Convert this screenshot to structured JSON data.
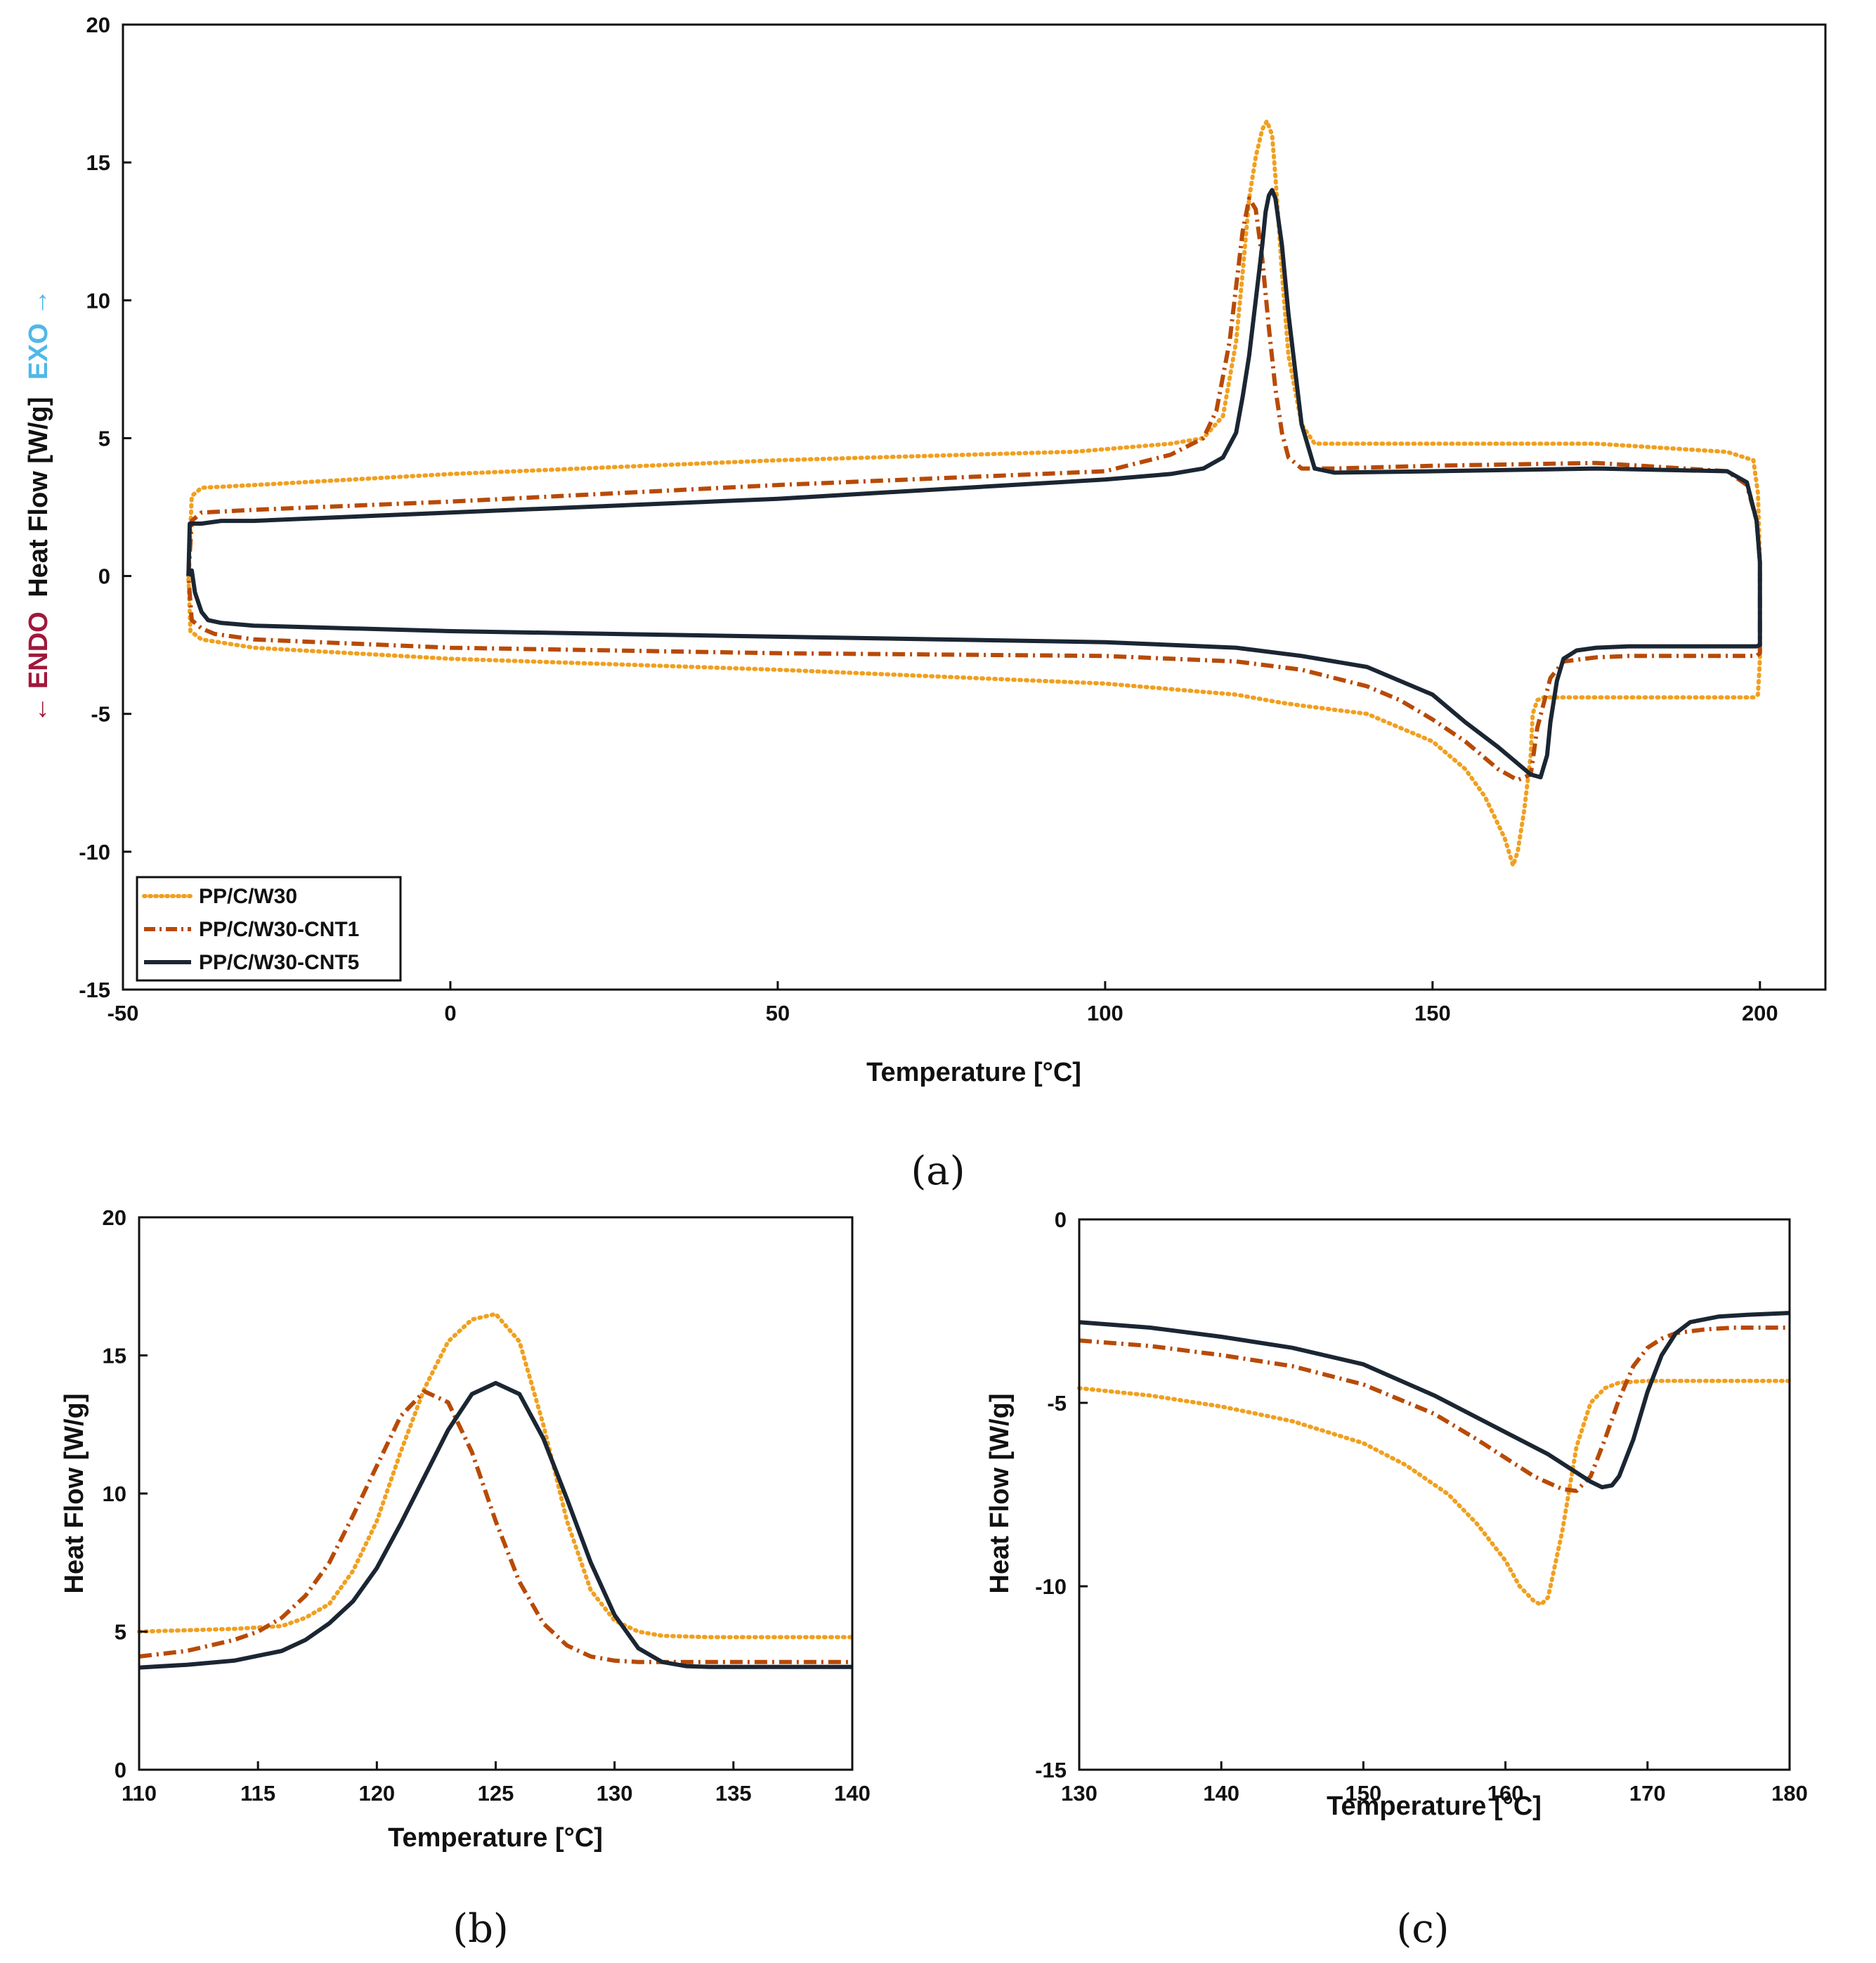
{
  "colors": {
    "pp_c_w30": "#F0A020",
    "pp_c_w30_cnt1": "#B84A06",
    "pp_c_w30_cnt5": "#1B2633",
    "endo": "#A0183C",
    "exo": "#4FB8E8"
  },
  "chart_data": [
    {
      "id": "a",
      "type": "line",
      "caption": "(a)",
      "xlabel": "Temperature [°C]",
      "ylabel": {
        "endo": "← ENDO",
        "middle": "Heat Flow [W/g]",
        "exo": "EXO →"
      },
      "xlim": [
        -50,
        210
      ],
      "ylim": [
        -15,
        20
      ],
      "xticks": [
        "-50",
        "0",
        "50",
        "100",
        "150",
        "200"
      ],
      "yticks": [
        "-15",
        "-10",
        "-5",
        "0",
        "5",
        "10",
        "15",
        "20"
      ],
      "legend": {
        "position": "bottom-left",
        "entries": [
          "PP/C/W30",
          "PP/C/W30-CNT1",
          "PP/C/W30-CNT5"
        ]
      },
      "series": [
        {
          "name": "PP/C/W30",
          "style": "dotted",
          "x": [
            -40,
            -39.5,
            -38,
            -30,
            0,
            50,
            94,
            95,
            110,
            115,
            118,
            120,
            121,
            122,
            123,
            124,
            124.7,
            125.5,
            126,
            127,
            128,
            130,
            132,
            150,
            175,
            195,
            199,
            199.7,
            200,
            200,
            199.7,
            199,
            195,
            175,
            167,
            166,
            165.3,
            165,
            164,
            163,
            162.3,
            161,
            158,
            155,
            150,
            140,
            130,
            127,
            120,
            100,
            50,
            0,
            -30,
            -38,
            -39.7,
            -40
          ],
          "y": [
            0,
            2.9,
            3.2,
            3.3,
            3.7,
            4.2,
            4.5,
            4.5,
            4.8,
            5.0,
            5.8,
            8.5,
            11.0,
            13.7,
            15.2,
            16.2,
            16.5,
            16.0,
            14.5,
            11.0,
            8.0,
            5.5,
            4.8,
            4.8,
            4.8,
            4.5,
            4.2,
            3.0,
            0.5,
            -3.0,
            -4.3,
            -4.4,
            -4.4,
            -4.4,
            -4.4,
            -4.5,
            -5.0,
            -6.5,
            -8.5,
            -10.0,
            -10.5,
            -9.5,
            -8.0,
            -7.0,
            -6.0,
            -5.0,
            -4.7,
            -4.6,
            -4.3,
            -3.9,
            -3.4,
            -3.0,
            -2.6,
            -2.3,
            -2.0,
            0
          ]
        },
        {
          "name": "PP/C/W30-CNT1",
          "style": "dashdot",
          "x": [
            -40,
            -39.5,
            -38,
            -30,
            0,
            50,
            100,
            110,
            115,
            117,
            119,
            120,
            121,
            122,
            123,
            124,
            125,
            126,
            127,
            128,
            130,
            132,
            135,
            150,
            175,
            195,
            198,
            199.5,
            200,
            200,
            199.5,
            198,
            195,
            180,
            175,
            170,
            168,
            166,
            165,
            163,
            160,
            155,
            150,
            145,
            140,
            130,
            120,
            100,
            50,
            0,
            -30,
            -36,
            -38,
            -39.5,
            -40
          ],
          "y": [
            0,
            2.0,
            2.3,
            2.4,
            2.7,
            3.3,
            3.8,
            4.4,
            5.0,
            6.0,
            8.5,
            10.5,
            12.5,
            13.7,
            13.3,
            11.5,
            9.0,
            6.8,
            5.2,
            4.3,
            3.9,
            3.9,
            3.9,
            4.0,
            4.1,
            3.8,
            3.3,
            2.0,
            0.5,
            -2.8,
            -2.9,
            -2.9,
            -2.9,
            -2.9,
            -2.95,
            -3.1,
            -3.7,
            -5.5,
            -7.2,
            -7.4,
            -7.0,
            -6.0,
            -5.2,
            -4.5,
            -4.0,
            -3.4,
            -3.1,
            -2.9,
            -2.8,
            -2.6,
            -2.3,
            -2.1,
            -1.9,
            -1.6,
            0
          ]
        },
        {
          "name": "PP/C/W30-CNT5",
          "style": "solid",
          "x": [
            -40,
            -39.8,
            -39,
            -38,
            -35,
            -30,
            0,
            50,
            100,
            110,
            115,
            118,
            120,
            121,
            122,
            123,
            124,
            124.5,
            125,
            125.5,
            126,
            127,
            128,
            130,
            132,
            135,
            150,
            175,
            195,
            198,
            199.5,
            200,
            200,
            199.5,
            198,
            195,
            180,
            175,
            172,
            170,
            169,
            168,
            167.5,
            166.5,
            165,
            162,
            160,
            155,
            150,
            140,
            130,
            120,
            100,
            50,
            0,
            -30,
            -35,
            -37,
            -38,
            -39,
            -39.5,
            -39.8,
            -40
          ],
          "y": [
            0,
            1.9,
            1.9,
            1.9,
            2.0,
            2.0,
            2.3,
            2.8,
            3.5,
            3.7,
            3.9,
            4.3,
            5.2,
            6.5,
            8.0,
            10.0,
            12.0,
            13.2,
            13.8,
            14.0,
            13.7,
            12.0,
            9.5,
            5.5,
            3.9,
            3.75,
            3.8,
            3.9,
            3.8,
            3.4,
            2.0,
            0.5,
            -2.5,
            -2.55,
            -2.55,
            -2.55,
            -2.55,
            -2.6,
            -2.7,
            -3.0,
            -3.8,
            -5.3,
            -6.5,
            -7.3,
            -7.2,
            -6.6,
            -6.2,
            -5.3,
            -4.3,
            -3.3,
            -2.9,
            -2.6,
            -2.4,
            -2.2,
            -2.0,
            -1.8,
            -1.7,
            -1.6,
            -1.3,
            -0.6,
            0.2,
            0.15,
            0
          ]
        }
      ]
    },
    {
      "id": "b",
      "type": "line",
      "caption": "(b)",
      "xlabel": "Temperature [°C]",
      "ylabel": "Heat Flow [W/g]",
      "xlim": [
        110,
        140
      ],
      "ylim": [
        0,
        20
      ],
      "xticks": [
        "110",
        "115",
        "120",
        "125",
        "130",
        "135",
        "140"
      ],
      "yticks": [
        "0",
        "5",
        "10",
        "15",
        "20"
      ],
      "series": [
        {
          "name": "PP/C/W30",
          "style": "dotted",
          "x": [
            110,
            112,
            114,
            116,
            117,
            118,
            119,
            120,
            121,
            122,
            123,
            124,
            125,
            126,
            127,
            128,
            129,
            130,
            131,
            132,
            134,
            136,
            140
          ],
          "y": [
            5.0,
            5.05,
            5.1,
            5.2,
            5.5,
            6.0,
            7.2,
            9.0,
            11.5,
            13.8,
            15.5,
            16.3,
            16.5,
            15.5,
            12.5,
            9.0,
            6.5,
            5.4,
            5.0,
            4.85,
            4.8,
            4.8,
            4.8
          ]
        },
        {
          "name": "PP/C/W30-CNT1",
          "style": "dashdot",
          "x": [
            110,
            112,
            114,
            115,
            116,
            117,
            118,
            119,
            120,
            121,
            122,
            123,
            124,
            125,
            126,
            127,
            128,
            129,
            130,
            131,
            132,
            134,
            136,
            140
          ],
          "y": [
            4.1,
            4.3,
            4.7,
            5.0,
            5.5,
            6.3,
            7.5,
            9.2,
            11.0,
            12.8,
            13.7,
            13.3,
            11.5,
            9.0,
            6.8,
            5.3,
            4.5,
            4.1,
            3.95,
            3.9,
            3.9,
            3.9,
            3.9,
            3.9
          ]
        },
        {
          "name": "PP/C/W30-CNT5",
          "style": "solid",
          "x": [
            110,
            112,
            114,
            116,
            117,
            118,
            119,
            120,
            121,
            122,
            123,
            124,
            125,
            126,
            127,
            128,
            129,
            130,
            131,
            132,
            133,
            134,
            136,
            140
          ],
          "y": [
            3.7,
            3.8,
            3.95,
            4.3,
            4.7,
            5.3,
            6.1,
            7.3,
            8.9,
            10.6,
            12.3,
            13.6,
            14.0,
            13.6,
            12.0,
            9.8,
            7.5,
            5.6,
            4.4,
            3.9,
            3.75,
            3.72,
            3.72,
            3.72
          ]
        }
      ]
    },
    {
      "id": "c",
      "type": "line",
      "caption": "(c)",
      "xlabel": "Temperature [°C]",
      "ylabel": "Heat Flow [W/g]",
      "xlim": [
        130,
        180
      ],
      "ylim": [
        -15,
        0
      ],
      "xticks": [
        "130",
        "140",
        "150",
        "160",
        "170",
        "180"
      ],
      "yticks": [
        "-15",
        "-10",
        "-5",
        "0"
      ],
      "series": [
        {
          "name": "PP/C/W30",
          "style": "dotted",
          "x": [
            130,
            135,
            140,
            145,
            150,
            153,
            156,
            158,
            160,
            161,
            162,
            162.5,
            163,
            164,
            165,
            166,
            167,
            168,
            170,
            175,
            180
          ],
          "y": [
            -4.6,
            -4.8,
            -5.1,
            -5.5,
            -6.1,
            -6.7,
            -7.5,
            -8.3,
            -9.3,
            -10.0,
            -10.4,
            -10.5,
            -10.3,
            -8.5,
            -6.2,
            -5.0,
            -4.6,
            -4.45,
            -4.4,
            -4.4,
            -4.4
          ]
        },
        {
          "name": "PP/C/W30-CNT1",
          "style": "dashdot",
          "x": [
            130,
            135,
            140,
            145,
            150,
            155,
            158,
            160,
            162,
            164,
            165,
            166,
            167,
            168,
            169,
            170,
            171,
            172,
            174,
            176,
            180
          ],
          "y": [
            -3.3,
            -3.45,
            -3.7,
            -4.0,
            -4.5,
            -5.3,
            -6.0,
            -6.5,
            -7.0,
            -7.35,
            -7.4,
            -7.0,
            -6.0,
            -4.9,
            -4.0,
            -3.5,
            -3.25,
            -3.1,
            -3.0,
            -2.95,
            -2.95
          ]
        },
        {
          "name": "PP/C/W30-CNT5",
          "style": "solid",
          "x": [
            130,
            135,
            140,
            145,
            150,
            155,
            160,
            163,
            165,
            166,
            166.8,
            167.5,
            168,
            169,
            170,
            171,
            172,
            173,
            175,
            177,
            180
          ],
          "y": [
            -2.8,
            -2.95,
            -3.2,
            -3.5,
            -3.95,
            -4.8,
            -5.8,
            -6.4,
            -6.9,
            -7.15,
            -7.3,
            -7.25,
            -7.0,
            -6.0,
            -4.7,
            -3.7,
            -3.1,
            -2.8,
            -2.65,
            -2.6,
            -2.55
          ]
        }
      ]
    }
  ]
}
